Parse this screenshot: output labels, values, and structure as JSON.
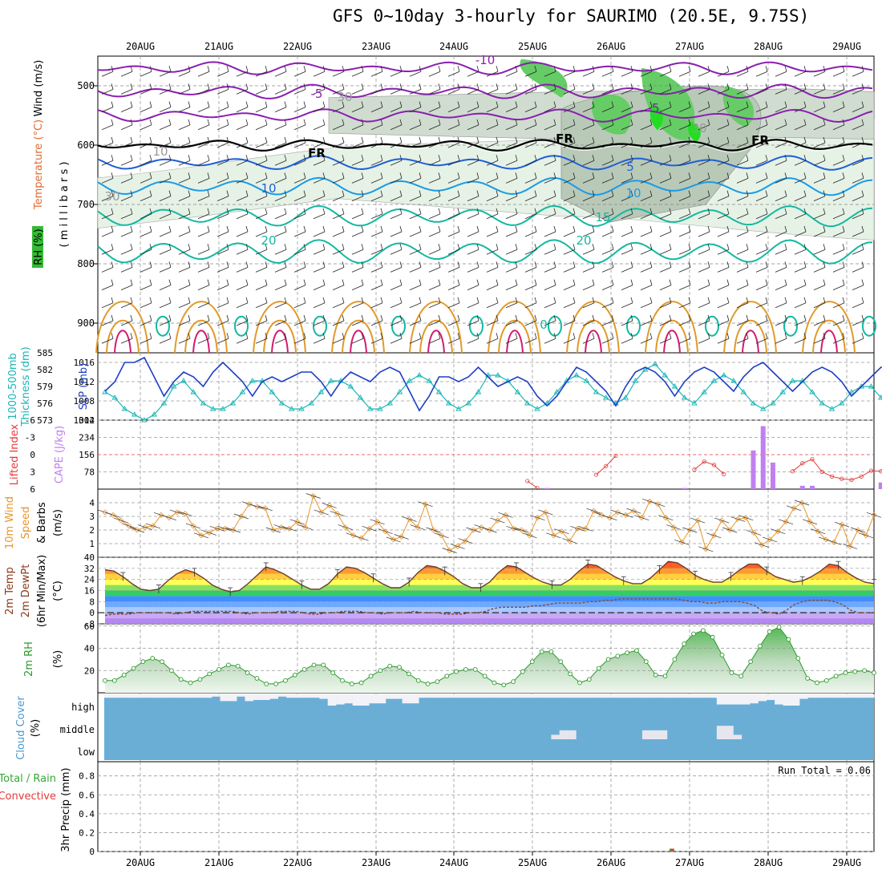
{
  "title": "GFS 0~10day 3-hourly for SAURIMO (20.5E, 9.75S)",
  "colors": {
    "rh_light": "#e6f2e6",
    "rh_mid": "#b8c9b8",
    "rh_green": "#66cc66",
    "rh_bright": "#22dd22",
    "temp_purple": "#8a1fb0",
    "temp_blue": "#1f5fd6",
    "temp_lightblue": "#1a9be6",
    "temp_teal": "#14b8a0",
    "temp_orange": "#e09a2a",
    "temp_magenta": "#d4196e",
    "slp": "#1f3fc4",
    "thickness": "#1ab6b6",
    "lifted": "#e23b3b",
    "cape": "#c080f0",
    "wind": "#e8962c",
    "rh2m": "#2b9a2b",
    "cloud": "#6aaed6",
    "precip_total": "#33aa33",
    "precip_conv": "#e23b3b"
  },
  "chart_data": [
    {
      "type": "heatmap",
      "name_panel": "upper-air",
      "ylabels": [
        "Wind (m/s)",
        "Temperature (°C)",
        "RH (%)",
        "( m i l l i b a r s )"
      ],
      "categories": [
        "20AUG",
        "21AUG",
        "22AUG",
        "23AUG",
        "24AUG",
        "25AUG",
        "26AUG",
        "27AUG",
        "28AUG",
        "29AUG"
      ],
      "y_ticks": [
        500,
        600,
        700,
        800,
        900
      ],
      "ylim": [
        950,
        450
      ],
      "grid": true,
      "contour_labels": [
        {
          "text": "-10",
          "color": "purple"
        },
        {
          "text": "-5",
          "color": "purple"
        },
        {
          "text": "-5",
          "color": "purple"
        },
        {
          "text": "FR",
          "color": "black"
        },
        {
          "text": "FR",
          "color": "black"
        },
        {
          "text": "FR",
          "color": "black"
        },
        {
          "text": "5",
          "color": "blue"
        },
        {
          "text": "10",
          "color": "blue"
        },
        {
          "text": "10",
          "color": "lightblue"
        },
        {
          "text": "15",
          "color": "teal"
        },
        {
          "text": "20",
          "color": "teal"
        },
        {
          "text": "20",
          "color": "teal"
        },
        {
          "text": "0",
          "color": "teal"
        },
        {
          "text": "30",
          "color": "gray"
        },
        {
          "text": "30",
          "color": "gray"
        },
        {
          "text": "10",
          "color": "gray"
        },
        {
          "text": "30",
          "color": "gray"
        }
      ]
    },
    {
      "type": "line",
      "name_panel": "slp-thickness",
      "ylabel_left": "1000-500mb Thickness (dm)",
      "ylabel_right": "SLP (mb)",
      "left_ticks": [
        573,
        576,
        579,
        582,
        585
      ],
      "right_ticks": [
        1004,
        1008,
        1012,
        1016
      ],
      "right_lim": [
        1004,
        1018
      ],
      "left_lim": [
        573,
        585
      ],
      "series": [
        {
          "name": "SLP (mb)",
          "values": [
            1010,
            1012,
            1016,
            1016,
            1017,
            1013,
            1009,
            1012,
            1014,
            1013,
            1011,
            1014,
            1016,
            1014,
            1012,
            1009,
            1012,
            1013,
            1012,
            1013,
            1014,
            1014,
            1012,
            1009,
            1012,
            1014,
            1013,
            1012,
            1014,
            1015,
            1014,
            1010,
            1006,
            1009,
            1013,
            1013,
            1012,
            1013,
            1015,
            1013,
            1011,
            1012,
            1013,
            1012,
            1009,
            1007,
            1009,
            1012,
            1015,
            1014,
            1012,
            1010,
            1007,
            1011,
            1014,
            1015,
            1014,
            1012,
            1009,
            1012,
            1014,
            1015,
            1014,
            1012,
            1010,
            1013,
            1015,
            1016,
            1014,
            1012,
            1010,
            1012,
            1014,
            1015,
            1014,
            1012,
            1009,
            1011,
            1013,
            1015,
            1015,
            1016
          ]
        },
        {
          "name": "Thickness (dm)",
          "values": [
            578,
            577,
            575,
            574,
            573,
            574,
            576,
            579,
            580,
            578,
            576,
            575,
            575,
            576,
            578,
            580,
            580,
            578,
            576,
            575,
            575,
            576,
            578,
            580,
            580,
            579,
            577,
            575,
            575,
            576,
            578,
            580,
            581,
            580,
            578,
            576,
            575,
            576,
            578,
            581,
            581,
            580,
            578,
            576,
            575,
            576,
            578,
            580,
            581,
            580,
            578,
            577,
            576,
            577,
            580,
            582,
            583,
            581,
            579,
            577,
            576,
            578,
            580,
            581,
            580,
            578,
            576,
            575,
            576,
            578,
            580,
            580,
            578,
            576,
            575,
            576,
            578,
            579,
            579,
            577,
            575,
            575
          ]
        }
      ]
    },
    {
      "type": "bar",
      "name_panel": "cape-li",
      "ylabel_left": "Lifted Index",
      "ylabel_right": "CAPE (J/kg)",
      "left_ticks": [
        "-6",
        "-3",
        "0",
        "3",
        "6"
      ],
      "right_ticks": [
        "78",
        "156",
        "234",
        "312"
      ],
      "right_lim": [
        0,
        312
      ],
      "cape_values": [
        0,
        0,
        0,
        0,
        0,
        0,
        0,
        0,
        0,
        0,
        0,
        0,
        0,
        0,
        0,
        0,
        0,
        0,
        0,
        0,
        0,
        0,
        0,
        0,
        0,
        0,
        0,
        0,
        0,
        0,
        0,
        0,
        0,
        0,
        0,
        0,
        0,
        0,
        0,
        0,
        0,
        0,
        0,
        0,
        0,
        5,
        0,
        0,
        0,
        0,
        0,
        0,
        0,
        0,
        0,
        0,
        0,
        0,
        0,
        5,
        0,
        0,
        0,
        0,
        0,
        0,
        175,
        285,
        120,
        0,
        0,
        15,
        15,
        0,
        0,
        0,
        0,
        0,
        0,
        30,
        25,
        0,
        0,
        0,
        0,
        0,
        0
      ],
      "li_values": [
        null,
        null,
        null,
        null,
        null,
        null,
        null,
        null,
        null,
        null,
        null,
        null,
        null,
        null,
        null,
        null,
        null,
        null,
        null,
        null,
        null,
        null,
        null,
        null,
        null,
        null,
        null,
        null,
        null,
        null,
        null,
        null,
        null,
        null,
        null,
        null,
        null,
        null,
        null,
        null,
        null,
        null,
        null,
        4.6,
        5.8,
        null,
        null,
        null,
        null,
        null,
        3.5,
        2.0,
        0.2,
        null,
        null,
        null,
        null,
        null,
        null,
        null,
        2.6,
        1.2,
        1.8,
        3.4,
        null,
        null,
        null,
        null,
        null,
        null,
        2.9,
        1.5,
        0.8,
        3.0,
        3.8,
        4.2,
        4.4,
        3.8,
        2.8,
        2.9,
        1.6,
        0.6,
        1.2,
        3.8,
        4.2,
        1.6,
        1.8,
        2.4,
        2.0
      ]
    },
    {
      "type": "line",
      "name_panel": "wind10m",
      "ylabel": "10m Wind Speed & Barbs (m/s)",
      "ylabel_parts": [
        "10m Wind",
        "Speed",
        "& Barbs",
        "(m/s)"
      ],
      "y_ticks": [
        1,
        2,
        3,
        4
      ],
      "ylim": [
        0,
        5
      ],
      "values": [
        3.3,
        3.1,
        2.7,
        2.3,
        2.0,
        2.2,
        2.3,
        3.1,
        2.9,
        3.3,
        3.2,
        2.3,
        1.6,
        1.8,
        2.1,
        2.1,
        2.0,
        3.0,
        3.9,
        3.7,
        3.6,
        2.0,
        2.2,
        2.1,
        2.6,
        2.2,
        4.5,
        3.3,
        3.8,
        3.2,
        2.2,
        1.6,
        1.4,
        2.1,
        2.6,
        1.9,
        1.3,
        1.5,
        2.8,
        2.2,
        3.9,
        2.0,
        1.6,
        0.5,
        0.8,
        1.2,
        2.0,
        2.2,
        2.0,
        2.7,
        3.1,
        2.1,
        2.0,
        1.6,
        2.9,
        3.3,
        1.6,
        1.9,
        1.2,
        2.1,
        2.1,
        3.4,
        3.1,
        2.9,
        3.3,
        3.1,
        3.4,
        2.9,
        4.1,
        3.9,
        2.9,
        2.2,
        1.1,
        2.0,
        2.7,
        0.6,
        1.6,
        2.7,
        2.0,
        2.8,
        2.9,
        1.8,
        0.9,
        1.3,
        1.9,
        2.6,
        3.6,
        4.0,
        2.6,
        1.9,
        1.3,
        1.1,
        2.4,
        0.8,
        2.0,
        1.6,
        3.1
      ]
    },
    {
      "type": "area",
      "name_panel": "temp2m",
      "ylabel_parts": [
        "2m Temp",
        "2m DewPt",
        "(6hr Min/Max)",
        "(°C)"
      ],
      "y_ticks": [
        -8,
        0,
        8,
        16,
        24,
        32,
        40
      ],
      "ylim": [
        -8,
        40
      ],
      "temp_values": [
        31,
        30,
        26,
        21,
        17,
        16,
        17,
        23,
        28,
        31,
        29,
        25,
        20,
        17,
        15,
        16,
        21,
        27,
        33,
        31,
        28,
        24,
        20,
        17,
        17,
        21,
        28,
        33,
        32,
        29,
        25,
        21,
        18,
        18,
        22,
        29,
        34,
        33,
        30,
        26,
        21,
        18,
        18,
        22,
        29,
        34,
        33,
        29,
        25,
        22,
        20,
        20,
        24,
        30,
        35,
        34,
        30,
        26,
        23,
        21,
        21,
        25,
        31,
        37,
        36,
        32,
        27,
        24,
        22,
        22,
        26,
        31,
        35,
        35,
        30,
        26,
        24,
        22,
        23,
        26,
        30,
        35,
        34,
        29,
        25,
        22,
        21
      ],
      "dew_values": [
        -2,
        -1,
        -1,
        -1,
        0,
        0,
        0,
        0,
        0,
        -1,
        0,
        1,
        1,
        1,
        1,
        1,
        1,
        0,
        -1,
        0,
        0,
        0,
        1,
        1,
        1,
        0,
        -1,
        -1,
        0,
        0,
        1,
        1,
        1,
        0,
        0,
        -1,
        0,
        0,
        0,
        1,
        0,
        0,
        0,
        -1,
        -1,
        -1,
        0,
        0,
        1,
        3,
        4,
        4,
        4,
        4,
        5,
        5,
        6,
        7,
        7,
        7,
        7,
        8,
        8,
        9,
        9,
        10,
        10,
        10,
        10,
        10,
        10,
        10,
        10,
        9,
        8,
        8,
        7,
        7,
        8,
        8,
        8,
        7,
        5,
        1,
        0,
        -1,
        2,
        6,
        8,
        9,
        9,
        9,
        8,
        6,
        2,
        0,
        0,
        0
      ]
    },
    {
      "type": "area",
      "name_panel": "rh2m",
      "ylabel": "2m RH",
      "yunit": "(%)",
      "y_ticks": [
        20,
        40,
        60
      ],
      "ylim": [
        0,
        62
      ],
      "values": [
        11,
        11,
        16,
        22,
        28,
        31,
        28,
        20,
        12,
        9,
        12,
        17,
        21,
        25,
        24,
        18,
        13,
        8,
        8,
        11,
        16,
        21,
        25,
        25,
        18,
        11,
        8,
        9,
        15,
        20,
        24,
        23,
        17,
        11,
        8,
        10,
        15,
        19,
        21,
        21,
        15,
        9,
        7,
        10,
        19,
        28,
        37,
        37,
        28,
        17,
        9,
        12,
        22,
        30,
        33,
        36,
        38,
        28,
        16,
        15,
        30,
        44,
        53,
        56,
        50,
        34,
        18,
        15,
        28,
        42,
        55,
        59,
        48,
        31,
        13,
        9,
        11,
        15,
        18,
        19,
        20,
        18
      ]
    },
    {
      "type": "bar",
      "name_panel": "cloud",
      "ylabel": "Cloud Cover",
      "yunit": "(%)",
      "levels": [
        "high",
        "middle",
        "low"
      ],
      "high_values": [
        85,
        85,
        85,
        85,
        85,
        85,
        85,
        85,
        85,
        85,
        85,
        85,
        85,
        90,
        70,
        70,
        90,
        70,
        75,
        75,
        80,
        90,
        85,
        85,
        85,
        85,
        80,
        50,
        55,
        60,
        50,
        50,
        60,
        60,
        80,
        80,
        60,
        60,
        85,
        85,
        85,
        85,
        85,
        85,
        85,
        85,
        85,
        85,
        85,
        85,
        85,
        85,
        85,
        85,
        85,
        85,
        85,
        85,
        85,
        85,
        85,
        85,
        85,
        85,
        85,
        85,
        85,
        85,
        85,
        85,
        85,
        85,
        85,
        85,
        55,
        55,
        55,
        55,
        60,
        70,
        75,
        55,
        50,
        50,
        80,
        85,
        85,
        85,
        85,
        85,
        85,
        85,
        85
      ],
      "mid_values": [
        0,
        0,
        0,
        0,
        0,
        0,
        0,
        0,
        0,
        0,
        0,
        0,
        0,
        0,
        0,
        0,
        0,
        0,
        0,
        0,
        0,
        0,
        0,
        0,
        0,
        0,
        0,
        0,
        0,
        0,
        0,
        0,
        0,
        0,
        0,
        0,
        0,
        0,
        0,
        0,
        0,
        0,
        0,
        0,
        0,
        0,
        0,
        0,
        0,
        0,
        0,
        0,
        0,
        0,
        20,
        40,
        40,
        0,
        0,
        0,
        0,
        0,
        0,
        0,
        0,
        40,
        40,
        40,
        0,
        0,
        0,
        0,
        0,
        0,
        60,
        60,
        20,
        0,
        0,
        0,
        0,
        0,
        0,
        0,
        0,
        0,
        0,
        0,
        0,
        0,
        0,
        0,
        0,
        0
      ]
    },
    {
      "type": "bar",
      "name_panel": "precip",
      "ylabel_parts": [
        "Total / Rain",
        "Convective",
        "3hr Precip (mm)"
      ],
      "y_ticks": [
        "0",
        "0.2",
        "0.4",
        "0.6",
        "0.8"
      ],
      "ylim": [
        0,
        0.95
      ],
      "run_total": "Run Total = 0.06",
      "total_values_at": 22,
      "total_value": 0.03,
      "conv_value": 0.03
    }
  ]
}
